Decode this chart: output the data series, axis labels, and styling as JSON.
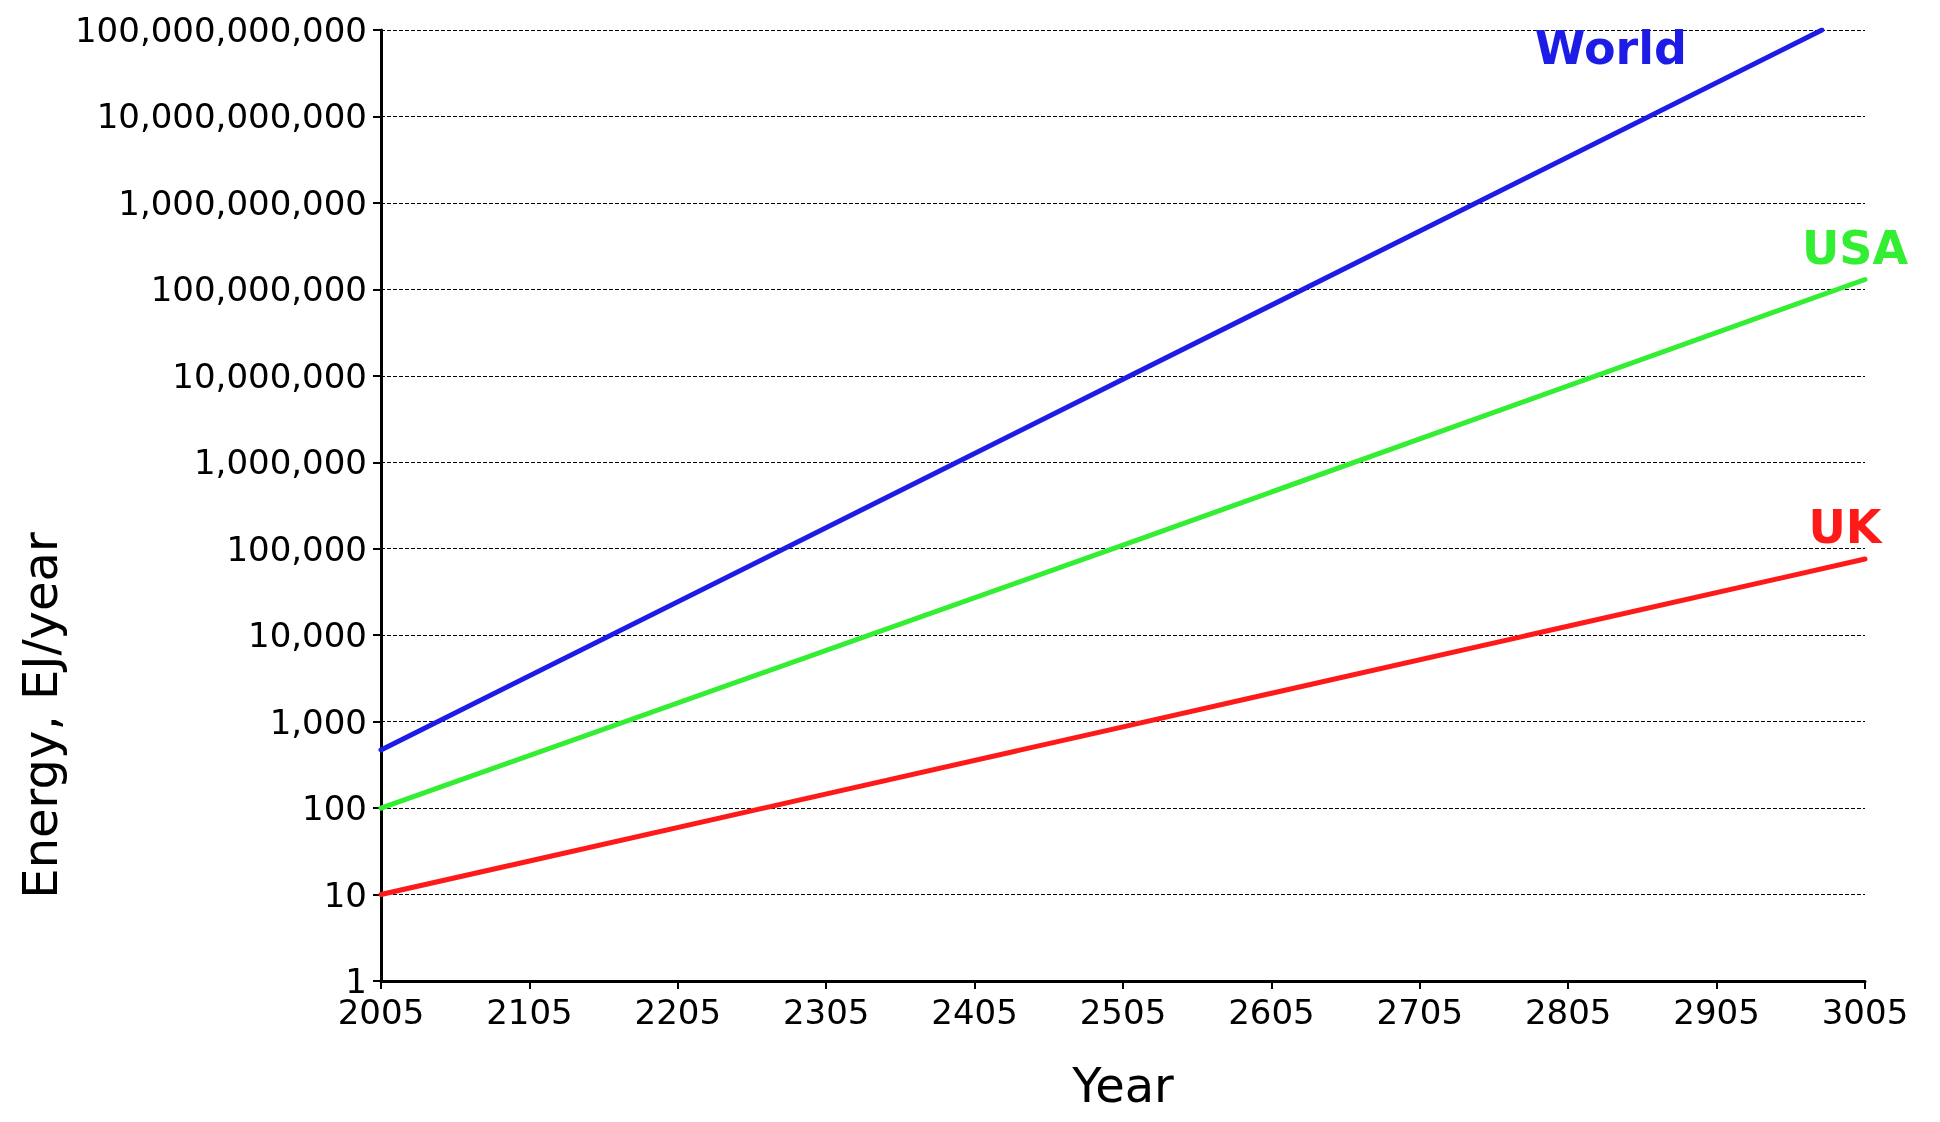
{
  "chart_data": {
    "type": "line",
    "xlabel": "Year",
    "ylabel": "Energy, EJ/year",
    "log": "y",
    "grid": "y",
    "legend": false,
    "marker": "none",
    "line_style": "solid",
    "xlim": [
      2005,
      3005
    ],
    "xticks": [
      2005,
      2105,
      2205,
      2305,
      2405,
      2505,
      2605,
      2705,
      2805,
      2905,
      3005
    ],
    "ylim": [
      1,
      100000000000
    ],
    "yticks": [
      1,
      10,
      100,
      {
        "value": 1000,
        "label": "1,000"
      },
      {
        "value": 10000,
        "label": "10,000"
      },
      {
        "value": 100000,
        "label": "100,000"
      },
      {
        "value": 1000000,
        "label": "1,000,000"
      },
      {
        "value": 10000000,
        "label": "10,000,000"
      },
      {
        "value": 100000000,
        "label": "100,000,000"
      },
      {
        "value": 1000000000,
        "label": "1,000,000,000"
      },
      {
        "value": 10000000000,
        "label": "10,000,000,000"
      },
      {
        "value": 100000000000,
        "label": "100,000,000,000"
      }
    ],
    "series": [
      {
        "name": "World",
        "color": "#1c1ce6",
        "x": [
          2005,
          2505,
          2976
        ],
        "values": [
          470,
          9100000,
          100000000000
        ]
      },
      {
        "name": "USA",
        "color": "#33ee33",
        "x": [
          2005,
          2505,
          3005
        ],
        "values": [
          100,
          110000,
          130000000
        ]
      },
      {
        "name": "UK",
        "color": "#ff1a1a",
        "x": [
          2005,
          2505,
          3005
        ],
        "values": [
          10,
          870,
          76000
        ]
      }
    ]
  }
}
